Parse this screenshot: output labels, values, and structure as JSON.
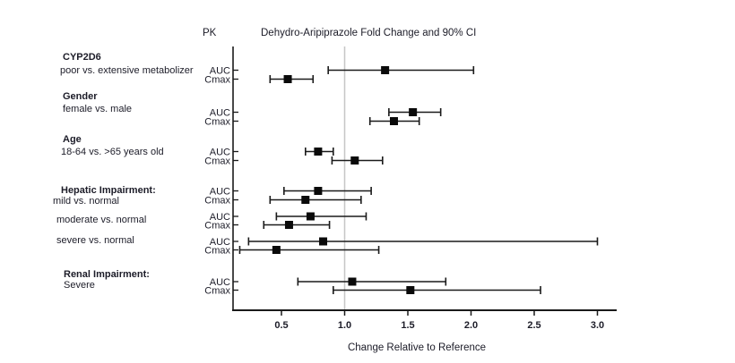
{
  "header": {
    "pk_label": "PK",
    "title": "Dehydro-Aripiprazole Fold Change and 90% CI"
  },
  "chart_data": {
    "type": "forest",
    "title": "Dehydro-Aripiprazole Fold Change and 90% CI",
    "pk_column_header": "PK",
    "xlabel": "Change Relative to Reference",
    "ci_level": "90% CI",
    "x_ticks": [
      "0.5",
      "1.0",
      "1.5",
      "2.0",
      "2.5",
      "3.0"
    ],
    "x_tick_values": [
      0.5,
      1.0,
      1.5,
      2.0,
      2.5,
      3.0
    ],
    "xlim": [
      0.12,
      3.15
    ],
    "reference_line": 1.0,
    "grid": false,
    "legend": "none",
    "groups": [
      {
        "label": "CYP2D6",
        "comparisons": [
          {
            "label": "poor vs. extensive metabolizer",
            "rows": [
              {
                "pk": "AUC",
                "value": 1.32,
                "lo": 0.87,
                "hi": 2.02
              },
              {
                "pk": "Cmax",
                "value": 0.55,
                "lo": 0.41,
                "hi": 0.75
              }
            ]
          }
        ]
      },
      {
        "label": "Gender",
        "comparisons": [
          {
            "label": "female vs. male",
            "rows": [
              {
                "pk": "AUC",
                "value": 1.54,
                "lo": 1.35,
                "hi": 1.76
              },
              {
                "pk": "Cmax",
                "value": 1.39,
                "lo": 1.2,
                "hi": 1.59
              }
            ]
          }
        ]
      },
      {
        "label": "Age",
        "comparisons": [
          {
            "label": "18-64 vs. >65 years old",
            "rows": [
              {
                "pk": "AUC",
                "value": 0.79,
                "lo": 0.69,
                "hi": 0.91
              },
              {
                "pk": "Cmax",
                "value": 1.08,
                "lo": 0.9,
                "hi": 1.3
              }
            ]
          }
        ]
      },
      {
        "label": "Hepatic Impairment:",
        "comparisons": [
          {
            "label": "mild vs. normal",
            "rows": [
              {
                "pk": "AUC",
                "value": 0.79,
                "lo": 0.52,
                "hi": 1.21
              },
              {
                "pk": "Cmax",
                "value": 0.69,
                "lo": 0.41,
                "hi": 1.13
              }
            ]
          },
          {
            "label": "moderate vs. normal",
            "rows": [
              {
                "pk": "AUC",
                "value": 0.73,
                "lo": 0.46,
                "hi": 1.17
              },
              {
                "pk": "Cmax",
                "value": 0.56,
                "lo": 0.36,
                "hi": 0.88
              }
            ]
          },
          {
            "label": "severe vs. normal",
            "rows": [
              {
                "pk": "AUC",
                "value": 0.83,
                "lo": 0.24,
                "hi": 3.0
              },
              {
                "pk": "Cmax",
                "value": 0.46,
                "lo": 0.17,
                "hi": 1.27
              }
            ]
          }
        ]
      },
      {
        "label": "Renal Impairment:",
        "comparisons": [
          {
            "label": "Severe",
            "rows": [
              {
                "pk": "AUC",
                "value": 1.06,
                "lo": 0.63,
                "hi": 1.8
              },
              {
                "pk": "Cmax",
                "value": 1.52,
                "lo": 0.91,
                "hi": 2.55
              }
            ]
          }
        ]
      }
    ],
    "colors": {
      "marker": "#0a0a0a",
      "line": "#1a1a1a",
      "axis": "#1a1a1a",
      "reference_line": "#c6c6c6",
      "text": "#1c1c28"
    }
  }
}
